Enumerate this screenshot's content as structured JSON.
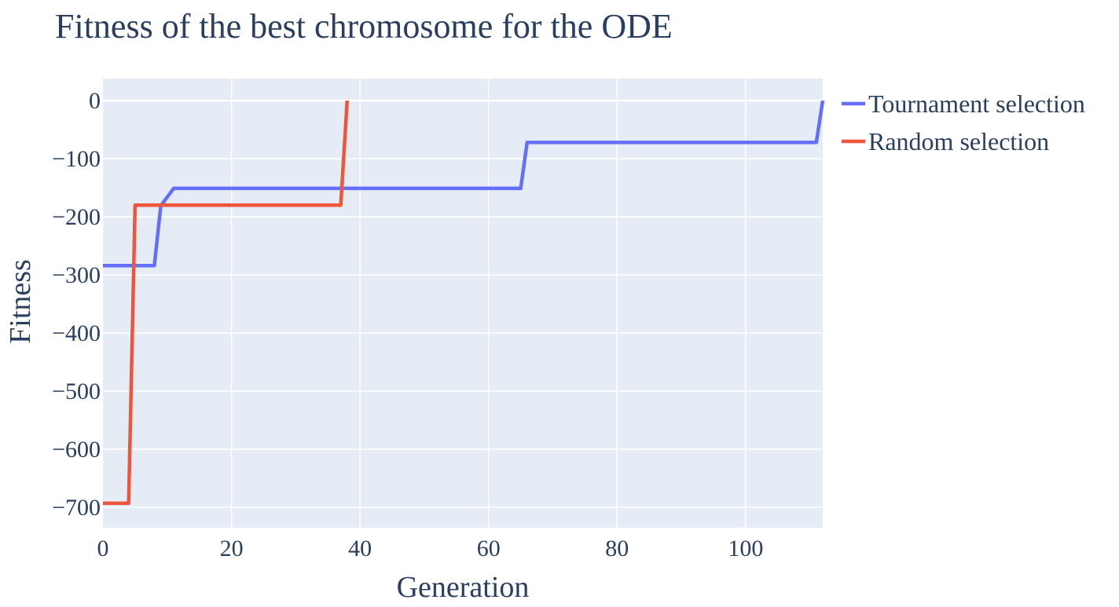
{
  "chart_data": {
    "type": "line",
    "title": "Fitness of the best chromosome for the ODE",
    "xlabel": "Generation",
    "ylabel": "Fitness",
    "xlim": [
      0,
      112
    ],
    "ylim": [
      -735,
      38
    ],
    "xticks": [
      0,
      20,
      40,
      60,
      80,
      100
    ],
    "yticks": [
      0,
      -100,
      -200,
      -300,
      -400,
      -500,
      -600,
      -700
    ],
    "ytick_labels": [
      "0",
      "−100",
      "−200",
      "−300",
      "−400",
      "−500",
      "−600",
      "−700"
    ],
    "plot_background": "#e5ecf6",
    "grid": true,
    "legend_position": "top-right-outside",
    "series": [
      {
        "name": "Tournament selection",
        "color": "#636efa",
        "x": [
          0,
          8,
          9,
          11,
          65,
          66,
          111,
          112
        ],
        "y": [
          -284,
          -284,
          -181,
          -151,
          -151,
          -72,
          -72,
          0
        ]
      },
      {
        "name": "Random selection",
        "color": "#ef553b",
        "x": [
          0,
          4,
          5,
          37,
          38
        ],
        "y": [
          -693,
          -693,
          -180,
          -180,
          0
        ]
      }
    ]
  }
}
